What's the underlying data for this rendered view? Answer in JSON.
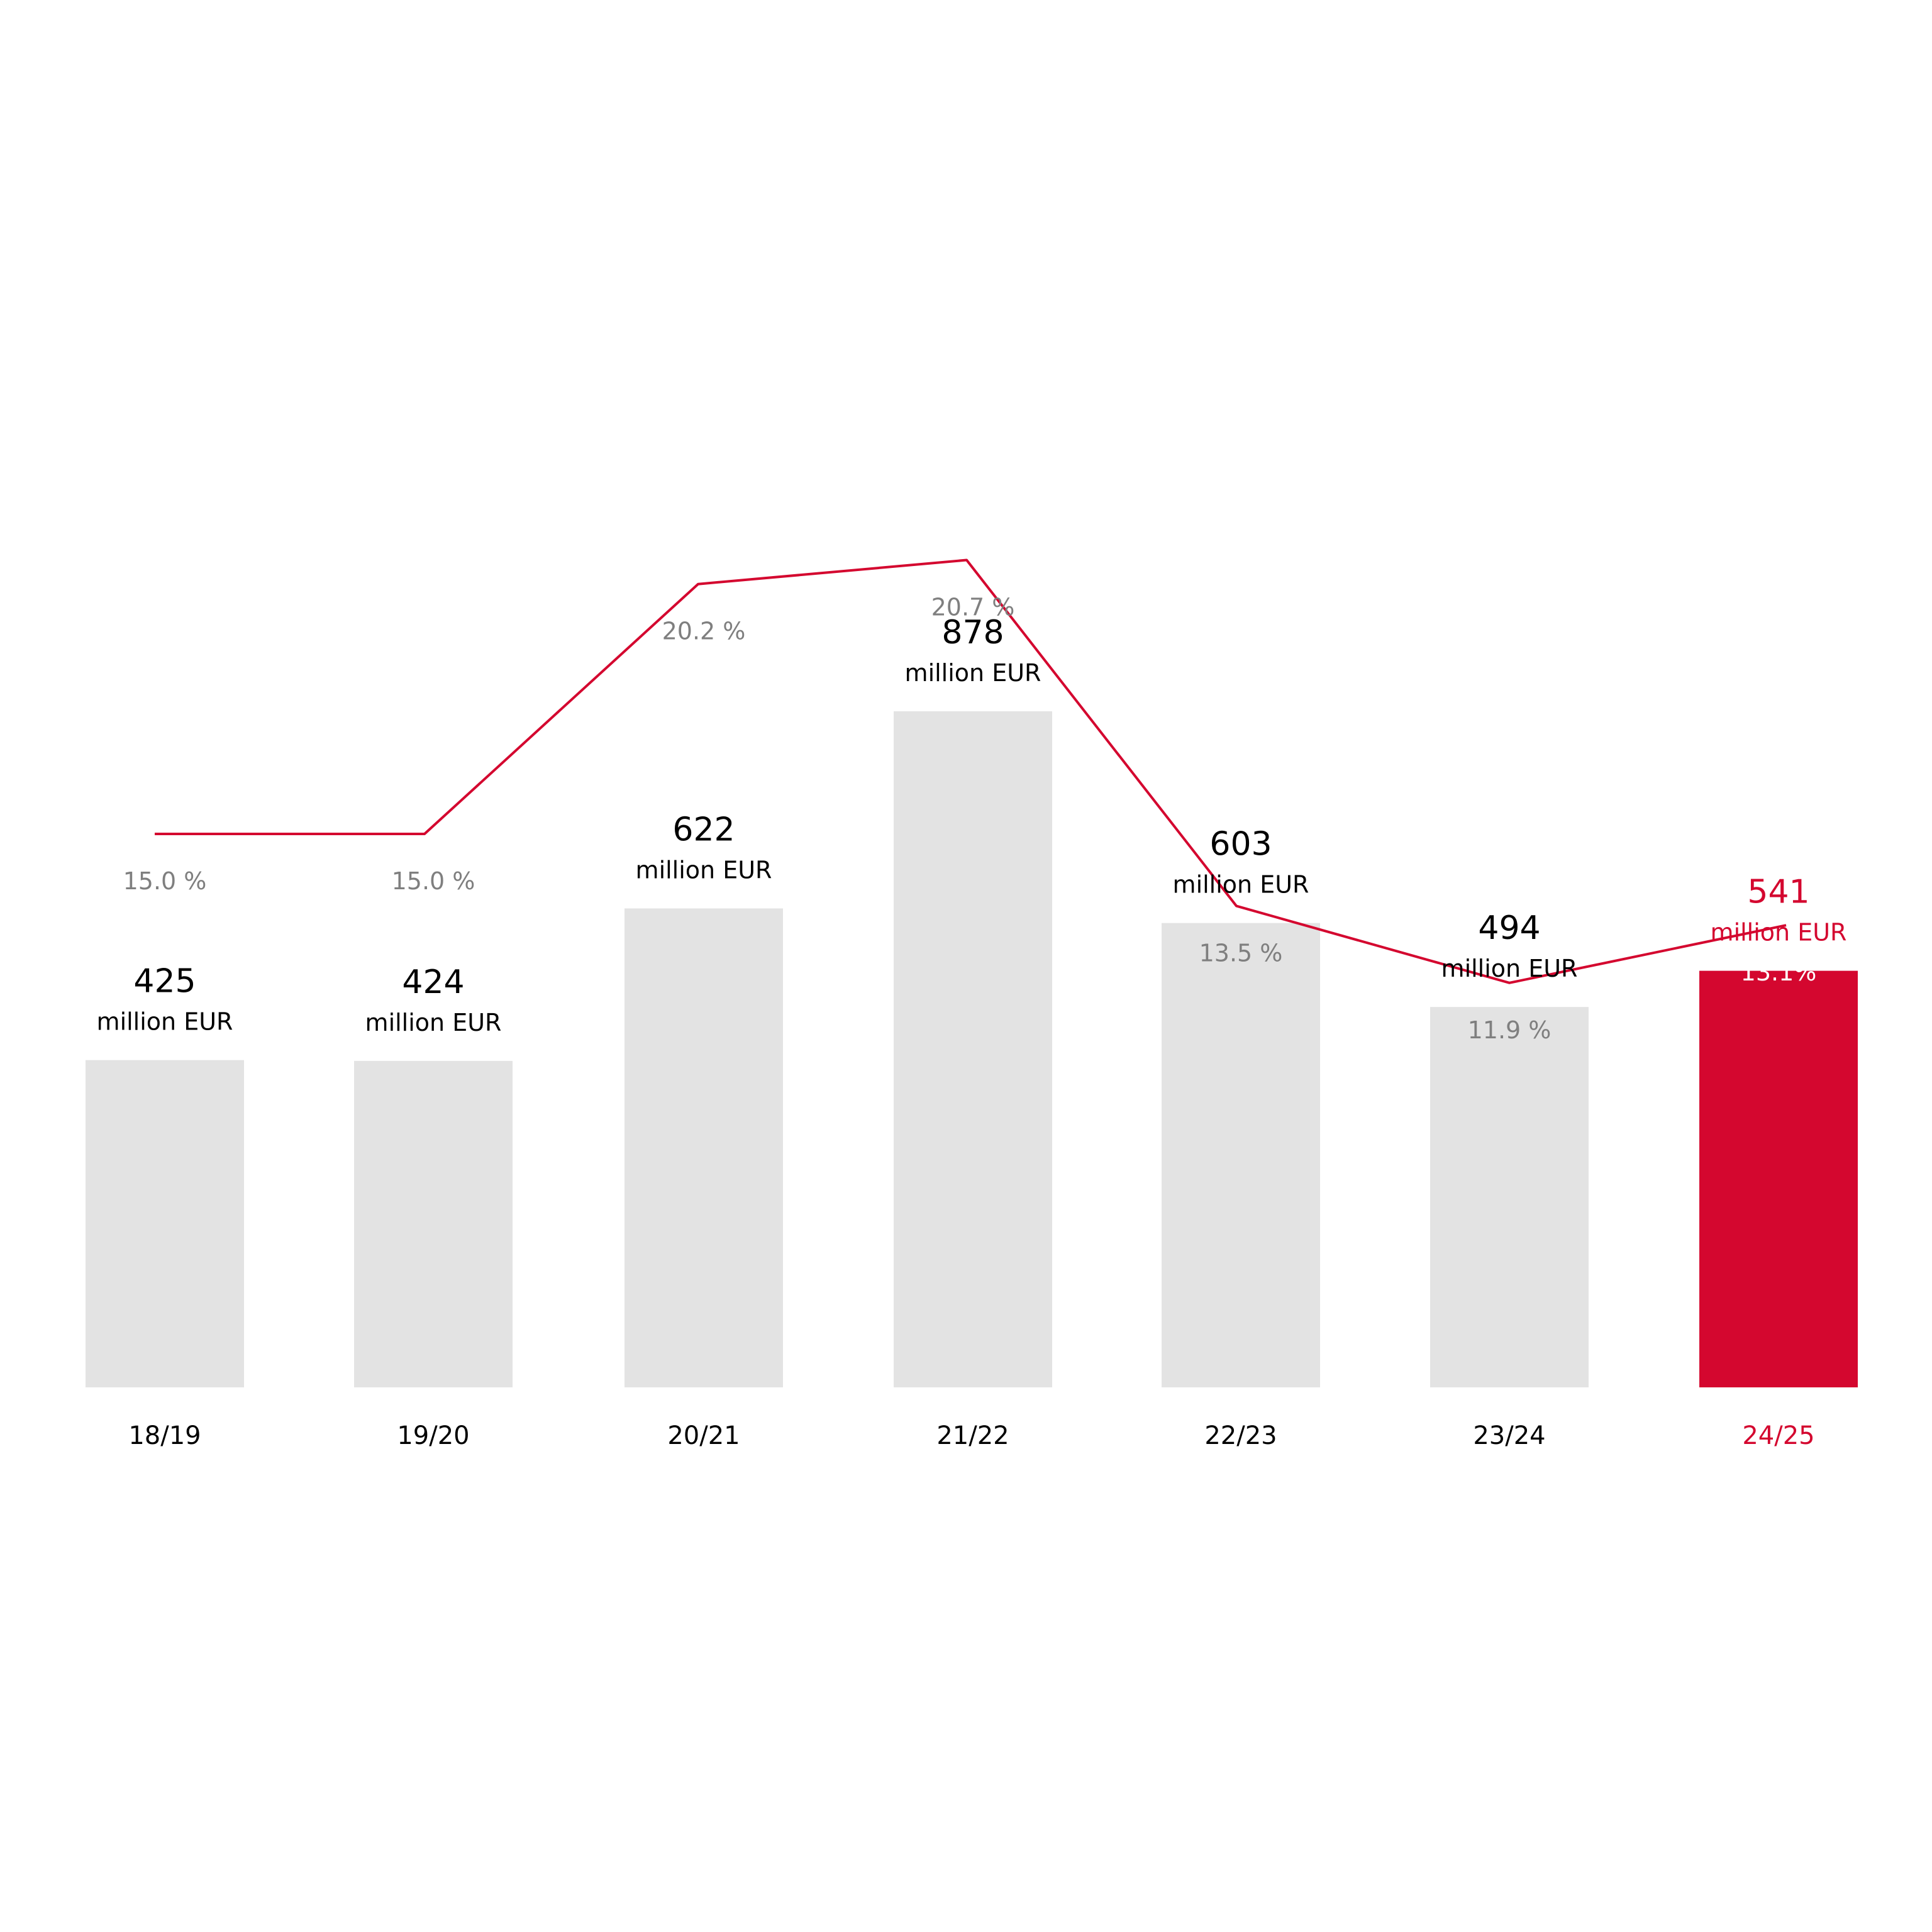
{
  "chart_data": {
    "type": "bar",
    "categories": [
      "18/19",
      "19/20",
      "20/21",
      "21/22",
      "22/23",
      "23/24",
      "24/25"
    ],
    "series": [
      {
        "type": "bar",
        "values": [
          425,
          424,
          622,
          878,
          603,
          494,
          541
        ],
        "value_labels": [
          "425",
          "424",
          "622",
          "878",
          "603",
          "494",
          "541"
        ],
        "unit": "million EUR"
      },
      {
        "type": "line",
        "values": [
          15.0,
          15.0,
          20.2,
          20.7,
          13.5,
          11.9,
          13.1
        ],
        "value_labels": [
          "15.0 %",
          "15.0 %",
          "20.2 %",
          "20.7 %",
          "13.5 %",
          "11.9 %",
          "13.1%"
        ]
      }
    ],
    "highlight_index": 6,
    "title": "",
    "xlabel": "",
    "ylabel": "",
    "grid": false,
    "colors": {
      "bar": "#e3e3e3",
      "highlight_bar": "#d4072f",
      "line": "#d4072f",
      "line_on_highlight": "#ffffff",
      "text": "#000000",
      "pct_text": "#7f7f7f",
      "highlight_text": "#d4072f",
      "pct_text_on_highlight": "#ffffff"
    }
  }
}
